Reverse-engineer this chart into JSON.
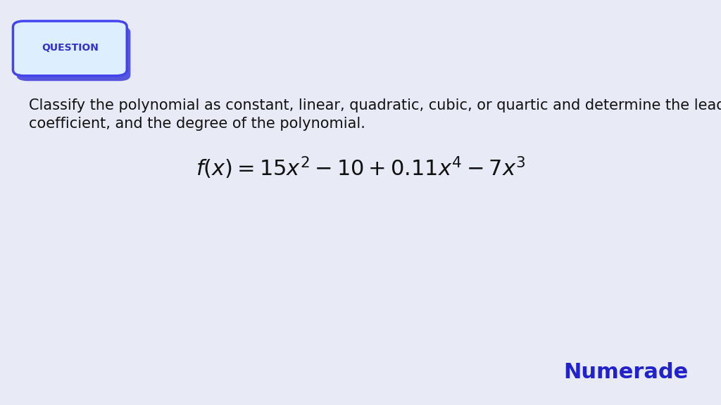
{
  "background_color": "#e8eaf6",
  "question_label": "QUESTION",
  "question_label_color": "#3333cc",
  "question_box_face_color": "#ddeeff",
  "question_box_edge_color": "#4444ee",
  "question_box_shadow_color": "#5555dd",
  "body_text_line1": "Classify the polynomial as constant, linear, quadratic, cubic, or quartic and determine the leading term, the leading",
  "body_text_line2": "coefficient, and the degree of the polynomial.",
  "formula": "$f(x) = 15x^2 - 10 + 0.11x^4 - 7x^3$",
  "body_text_color": "#111111",
  "formula_color": "#111111",
  "numerade_text": "Numerade",
  "numerade_color": "#2222cc",
  "body_font_size": 15,
  "formula_font_size": 22,
  "question_font_size": 10,
  "numerade_font_size": 22
}
